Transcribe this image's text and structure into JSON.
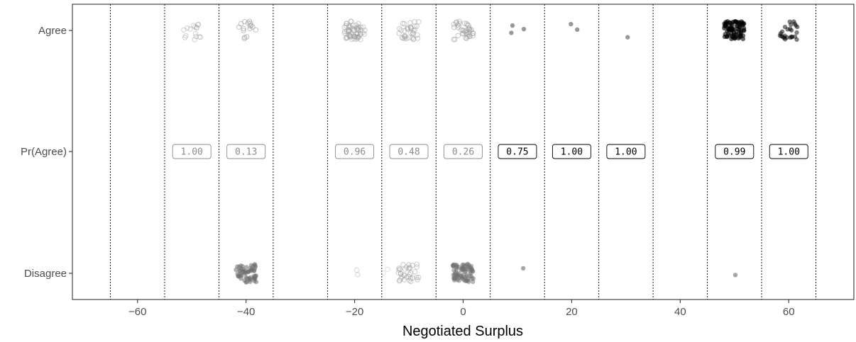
{
  "chart_data": {
    "type": "scatter",
    "title": "",
    "xlabel": "Negotiated Surplus",
    "ylabel": "",
    "xlim": [
      -72,
      72
    ],
    "x_ticks": [
      -60,
      -40,
      -20,
      0,
      20,
      40,
      60
    ],
    "x_tick_labels": [
      "−60",
      "−40",
      "−20",
      "0",
      "20",
      "40",
      "60"
    ],
    "y_categories": [
      "Agree",
      "Pr(Agree)",
      "Disagree"
    ],
    "bin_boundaries": [
      -65,
      -55,
      -45,
      -35,
      -25,
      -15,
      -5,
      5,
      15,
      25,
      35,
      45,
      55,
      65
    ],
    "grid": false,
    "colors": {
      "negative_marker": "#9a9a9a",
      "positive_marker": "#000000",
      "label_negative": "#8c8c8c",
      "label_positive": "#000000"
    },
    "probability_labels": [
      {
        "x": -50,
        "value": "1.00",
        "sign": "negative"
      },
      {
        "x": -40,
        "value": "0.13",
        "sign": "negative"
      },
      {
        "x": -20,
        "value": "0.96",
        "sign": "negative"
      },
      {
        "x": -10,
        "value": "0.48",
        "sign": "negative"
      },
      {
        "x": 0,
        "value": "0.26",
        "sign": "negative"
      },
      {
        "x": 10,
        "value": "0.75",
        "sign": "positive"
      },
      {
        "x": 20,
        "value": "1.00",
        "sign": "positive"
      },
      {
        "x": 30,
        "value": "1.00",
        "sign": "positive"
      },
      {
        "x": 50,
        "value": "0.99",
        "sign": "positive"
      },
      {
        "x": 60,
        "value": "1.00",
        "sign": "positive"
      }
    ],
    "series": [
      {
        "outcome": "Agree",
        "x_center": -50,
        "count": 16,
        "marker": "hollow",
        "opacity": 0.45
      },
      {
        "outcome": "Agree",
        "x_center": -40,
        "count": 16,
        "marker": "hollow",
        "opacity": 0.6
      },
      {
        "outcome": "Agree",
        "x_center": -20,
        "count": 60,
        "marker": "hollow",
        "opacity": 0.5
      },
      {
        "outcome": "Agree",
        "x_center": -10,
        "count": 35,
        "marker": "hollow",
        "opacity": 0.5
      },
      {
        "outcome": "Agree",
        "x_center": 0,
        "count": 40,
        "marker": "hollow",
        "opacity": 0.55
      },
      {
        "outcome": "Agree",
        "x_center": 10,
        "count": 3,
        "marker": "filled",
        "opacity": 0.4
      },
      {
        "outcome": "Agree",
        "x_center": 20,
        "count": 2,
        "marker": "filled",
        "opacity": 0.4
      },
      {
        "outcome": "Agree",
        "x_center": 30,
        "count": 1,
        "marker": "filled",
        "opacity": 0.4
      },
      {
        "outcome": "Agree",
        "x_center": 50,
        "count": 80,
        "marker": "filled",
        "opacity": 0.6
      },
      {
        "outcome": "Agree",
        "x_center": 60,
        "count": 25,
        "marker": "filled",
        "opacity": 0.5
      },
      {
        "outcome": "Disagree",
        "x_center": -40,
        "count": 60,
        "marker": "filled",
        "opacity": 0.55
      },
      {
        "outcome": "Disagree",
        "x_center": -20,
        "count": 2,
        "marker": "hollow",
        "opacity": 0.4
      },
      {
        "outcome": "Disagree",
        "x_center": -15,
        "count": 2,
        "marker": "hollow",
        "opacity": 0.3
      },
      {
        "outcome": "Disagree",
        "x_center": -10,
        "count": 35,
        "marker": "hollow",
        "opacity": 0.5
      },
      {
        "outcome": "Disagree",
        "x_center": 0,
        "count": 80,
        "marker": "filled",
        "opacity": 0.5
      },
      {
        "outcome": "Disagree",
        "x_center": 10,
        "count": 1,
        "marker": "filled",
        "opacity": 0.35
      },
      {
        "outcome": "Disagree",
        "x_center": 50,
        "count": 1,
        "marker": "filled",
        "opacity": 0.35
      }
    ]
  }
}
